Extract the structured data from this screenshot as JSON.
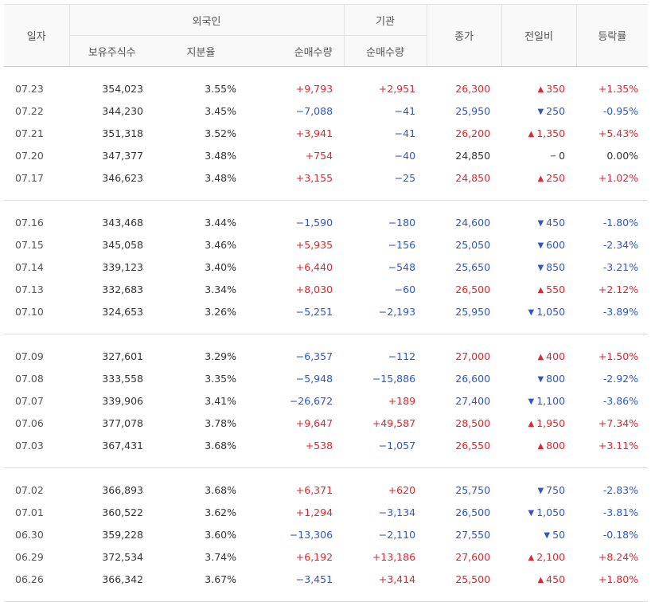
{
  "colors": {
    "up": "#e0262e",
    "down": "#2e56c9",
    "flat": "#333333"
  },
  "icons": {
    "up": "triangle-up-icon",
    "down": "triangle-down-icon",
    "flat": "dash-icon"
  },
  "header": {
    "date": "일자",
    "foreign": "외국인",
    "institution": "기관",
    "close": "종가",
    "change": "전일비",
    "rate": "등락률",
    "holdings": "보유주식수",
    "ratio": "지분율",
    "foreign_net": "순매수량",
    "inst_net": "순매수량"
  },
  "groups": [
    [
      {
        "date": "07.23",
        "holdings": "354,023",
        "ratio": "3.55%",
        "fnet": "+9,793",
        "fdir": "up",
        "inet": "+2,951",
        "idir": "up",
        "close": "26,300",
        "dir": "up",
        "arrow": "▲",
        "change": "350",
        "rate": "+1.35%"
      },
      {
        "date": "07.22",
        "holdings": "344,230",
        "ratio": "3.45%",
        "fnet": "−7,088",
        "fdir": "down",
        "inet": "−41",
        "idir": "down",
        "close": "25,950",
        "dir": "down",
        "arrow": "▼",
        "change": "250",
        "rate": "-0.95%"
      },
      {
        "date": "07.21",
        "holdings": "351,318",
        "ratio": "3.52%",
        "fnet": "+3,941",
        "fdir": "up",
        "inet": "−41",
        "idir": "down",
        "close": "26,200",
        "dir": "up",
        "arrow": "▲",
        "change": "1,350",
        "rate": "+5.43%"
      },
      {
        "date": "07.20",
        "holdings": "347,377",
        "ratio": "3.48%",
        "fnet": "+754",
        "fdir": "up",
        "inet": "−40",
        "idir": "down",
        "close": "24,850",
        "dir": "flat",
        "arrow": "−",
        "change": "0",
        "rate": "0.00%"
      },
      {
        "date": "07.17",
        "holdings": "346,623",
        "ratio": "3.48%",
        "fnet": "+3,155",
        "fdir": "up",
        "inet": "−25",
        "idir": "down",
        "close": "24,850",
        "dir": "up",
        "arrow": "▲",
        "change": "250",
        "rate": "+1.02%"
      }
    ],
    [
      {
        "date": "07.16",
        "holdings": "343,468",
        "ratio": "3.44%",
        "fnet": "−1,590",
        "fdir": "down",
        "inet": "−180",
        "idir": "down",
        "close": "24,600",
        "dir": "down",
        "arrow": "▼",
        "change": "450",
        "rate": "-1.80%"
      },
      {
        "date": "07.15",
        "holdings": "345,058",
        "ratio": "3.46%",
        "fnet": "+5,935",
        "fdir": "up",
        "inet": "−156",
        "idir": "down",
        "close": "25,050",
        "dir": "down",
        "arrow": "▼",
        "change": "600",
        "rate": "-2.34%"
      },
      {
        "date": "07.14",
        "holdings": "339,123",
        "ratio": "3.40%",
        "fnet": "+6,440",
        "fdir": "up",
        "inet": "−548",
        "idir": "down",
        "close": "25,650",
        "dir": "down",
        "arrow": "▼",
        "change": "850",
        "rate": "-3.21%"
      },
      {
        "date": "07.13",
        "holdings": "332,683",
        "ratio": "3.34%",
        "fnet": "+8,030",
        "fdir": "up",
        "inet": "−60",
        "idir": "down",
        "close": "26,500",
        "dir": "up",
        "arrow": "▲",
        "change": "550",
        "rate": "+2.12%"
      },
      {
        "date": "07.10",
        "holdings": "324,653",
        "ratio": "3.26%",
        "fnet": "−5,251",
        "fdir": "down",
        "inet": "−2,193",
        "idir": "down",
        "close": "25,950",
        "dir": "down",
        "arrow": "▼",
        "change": "1,050",
        "rate": "-3.89%"
      }
    ],
    [
      {
        "date": "07.09",
        "holdings": "327,601",
        "ratio": "3.29%",
        "fnet": "−6,357",
        "fdir": "down",
        "inet": "−112",
        "idir": "down",
        "close": "27,000",
        "dir": "up",
        "arrow": "▲",
        "change": "400",
        "rate": "+1.50%"
      },
      {
        "date": "07.08",
        "holdings": "333,558",
        "ratio": "3.35%",
        "fnet": "−5,948",
        "fdir": "down",
        "inet": "−15,886",
        "idir": "down",
        "close": "26,600",
        "dir": "down",
        "arrow": "▼",
        "change": "800",
        "rate": "-2.92%"
      },
      {
        "date": "07.07",
        "holdings": "339,906",
        "ratio": "3.41%",
        "fnet": "−26,672",
        "fdir": "down",
        "inet": "+189",
        "idir": "up",
        "close": "27,400",
        "dir": "down",
        "arrow": "▼",
        "change": "1,100",
        "rate": "-3.86%"
      },
      {
        "date": "07.06",
        "holdings": "377,078",
        "ratio": "3.78%",
        "fnet": "+9,647",
        "fdir": "up",
        "inet": "+49,587",
        "idir": "up",
        "close": "28,500",
        "dir": "up",
        "arrow": "▲",
        "change": "1,950",
        "rate": "+7.34%"
      },
      {
        "date": "07.03",
        "holdings": "367,431",
        "ratio": "3.68%",
        "fnet": "+538",
        "fdir": "up",
        "inet": "−1,057",
        "idir": "down",
        "close": "26,550",
        "dir": "up",
        "arrow": "▲",
        "change": "800",
        "rate": "+3.11%"
      }
    ],
    [
      {
        "date": "07.02",
        "holdings": "366,893",
        "ratio": "3.68%",
        "fnet": "+6,371",
        "fdir": "up",
        "inet": "+620",
        "idir": "up",
        "close": "25,750",
        "dir": "down",
        "arrow": "▼",
        "change": "750",
        "rate": "-2.83%"
      },
      {
        "date": "07.01",
        "holdings": "360,522",
        "ratio": "3.62%",
        "fnet": "+1,294",
        "fdir": "up",
        "inet": "−3,134",
        "idir": "down",
        "close": "26,500",
        "dir": "down",
        "arrow": "▼",
        "change": "1,050",
        "rate": "-3.81%"
      },
      {
        "date": "06.30",
        "holdings": "359,228",
        "ratio": "3.60%",
        "fnet": "−13,306",
        "fdir": "down",
        "inet": "−2,110",
        "idir": "down",
        "close": "27,550",
        "dir": "down",
        "arrow": "▼",
        "change": "50",
        "rate": "-0.18%"
      },
      {
        "date": "06.29",
        "holdings": "372,534",
        "ratio": "3.74%",
        "fnet": "+6,192",
        "fdir": "up",
        "inet": "+13,186",
        "idir": "up",
        "close": "27,600",
        "dir": "up",
        "arrow": "▲",
        "change": "2,100",
        "rate": "+8.24%"
      },
      {
        "date": "06.26",
        "holdings": "366,342",
        "ratio": "3.67%",
        "fnet": "−3,451",
        "fdir": "down",
        "inet": "+3,414",
        "idir": "up",
        "close": "25,500",
        "dir": "up",
        "arrow": "▲",
        "change": "450",
        "rate": "+1.80%"
      }
    ]
  ]
}
